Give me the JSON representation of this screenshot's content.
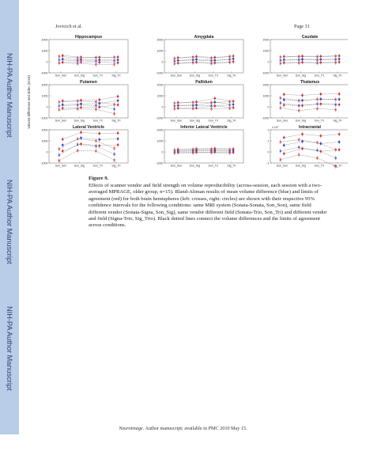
{
  "header": {
    "author": "Jovicich et al.",
    "page": "Page 31"
  },
  "sidebar": {
    "label": "NIH-PA Author Manuscript"
  },
  "figure": {
    "ylabel": "Volume difference and stdev (mm3)",
    "x_categories": [
      "Son_Son",
      "Son_Sig",
      "Son_Tri",
      "Sig_Tri"
    ],
    "panels": [
      {
        "title": "Hippocampus",
        "yticks": [
          "2000",
          "1000",
          "0",
          "-1000"
        ],
        "left": {
          "mean": [
            160,
            90,
            70,
            80
          ],
          "lower": [
            -120,
            -160,
            -240,
            -240
          ],
          "upper": [
            480,
            340,
            380,
            400
          ]
        },
        "right": {
          "mean": [
            240,
            190,
            170,
            160
          ],
          "lower": [
            -40,
            -30,
            -60,
            -90
          ],
          "upper": [
            560,
            410,
            400,
            420
          ]
        }
      },
      {
        "title": "Amygdala",
        "yticks": [
          "2000",
          "1000",
          "0",
          "-1000"
        ],
        "left": {
          "mean": [
            60,
            160,
            80,
            200
          ],
          "lower": [
            -180,
            -90,
            -160,
            -60
          ],
          "upper": [
            300,
            420,
            330,
            460
          ]
        },
        "right": {
          "mean": [
            120,
            210,
            130,
            260
          ],
          "lower": [
            -120,
            -40,
            -100,
            0
          ],
          "upper": [
            360,
            470,
            390,
            510
          ]
        }
      },
      {
        "title": "Caudate",
        "yticks": [
          "2000",
          "1000",
          "0",
          "-1000"
        ],
        "left": {
          "mean": [
            120,
            170,
            160,
            200
          ],
          "lower": [
            -150,
            -110,
            -120,
            -80
          ],
          "upper": [
            420,
            460,
            450,
            500
          ]
        },
        "right": {
          "mean": [
            180,
            220,
            210,
            240
          ],
          "lower": [
            -80,
            -50,
            -70,
            -30
          ],
          "upper": [
            470,
            500,
            490,
            530
          ]
        }
      },
      {
        "title": "Putamen",
        "yticks": [
          "2000",
          "1000",
          "0",
          "-1000"
        ],
        "left": {
          "mean": [
            90,
            160,
            120,
            -200
          ],
          "lower": [
            -260,
            -190,
            -220,
            -620
          ],
          "upper": [
            430,
            520,
            450,
            220
          ]
        },
        "right": {
          "mean": [
            200,
            260,
            300,
            560
          ],
          "lower": [
            -120,
            -60,
            -20,
            180
          ],
          "upper": [
            540,
            590,
            640,
            940
          ]
        }
      },
      {
        "title": "Pallidum",
        "yticks": [
          "2000",
          "1000",
          "0",
          "-1000"
        ],
        "left": {
          "mean": [
            70,
            120,
            100,
            160
          ],
          "lower": [
            -180,
            -160,
            -180,
            -140
          ],
          "upper": [
            330,
            400,
            380,
            460
          ]
        },
        "right": {
          "mean": [
            130,
            170,
            420,
            210
          ],
          "lower": [
            -120,
            -100,
            80,
            -80
          ],
          "upper": [
            380,
            450,
            760,
            500
          ]
        }
      },
      {
        "title": "Thalamus",
        "yticks": [
          "2000",
          "1000",
          "0",
          "-1000"
        ],
        "left": {
          "mean": [
            350,
            110,
            260,
            200
          ],
          "lower": [
            -100,
            -340,
            -160,
            -260
          ],
          "upper": [
            800,
            560,
            680,
            660
          ]
        },
        "right": {
          "mean": [
            640,
            580,
            700,
            680
          ],
          "lower": [
            160,
            120,
            260,
            200
          ],
          "upper": [
            1120,
            1040,
            1150,
            1160
          ]
        }
      },
      {
        "title": "Lateral Ventricle",
        "yticks": [
          "2000",
          "1000",
          "0",
          "-1000"
        ],
        "left": {
          "mean": [
            -280,
            680,
            520,
            -200
          ],
          "lower": [
            -780,
            120,
            80,
            -740
          ],
          "upper": [
            260,
            1180,
            1000,
            320
          ]
        },
        "right": {
          "mean": [
            620,
            1260,
            1120,
            1180
          ],
          "lower": [
            80,
            720,
            560,
            640
          ],
          "upper": [
            1140,
            1760,
            1660,
            1700
          ]
        }
      },
      {
        "title": "Inferior Lateral Ventricle",
        "yticks": [
          "2000",
          "1000",
          "0",
          "-1000"
        ],
        "left": {
          "mean": [
            40,
            80,
            100,
            60
          ],
          "lower": [
            -100,
            -80,
            -60,
            -100
          ],
          "upper": [
            180,
            230,
            260,
            220
          ]
        },
        "right": {
          "mean": [
            90,
            130,
            150,
            110
          ],
          "lower": [
            -50,
            -30,
            -10,
            -50
          ],
          "upper": [
            230,
            280,
            310,
            270
          ]
        }
      },
      {
        "title": "Intracranial",
        "exponent": "x 10⁴",
        "yticks": [
          "2",
          "1",
          "0",
          "-1"
        ],
        "left": {
          "mean": [
            0.08,
            0.42,
            0.15,
            -0.55
          ],
          "lower": [
            -0.7,
            -0.25,
            -0.55,
            -1.3
          ],
          "upper": [
            0.9,
            1.1,
            0.85,
            0.2
          ]
        },
        "right": {
          "mean": [
            0.6,
            0.95,
            0.75,
            0.9
          ],
          "lower": [
            -0.15,
            0.3,
            0.05,
            0.2
          ],
          "upper": [
            1.3,
            1.6,
            1.45,
            1.6
          ]
        }
      }
    ]
  },
  "caption": {
    "title": "Figure 9.",
    "text": "Effects of scanner vendor and field strength on volume reproducibility (across-session, each session with a two-averaged MPRAGE, older group, n=15). Bland-Altman results of mean volume difference (blue) and limits of agreement (red) for both brain hemispheres (left: crosses, right: circles) are shown with their respective 95% confidence intervals for the following conditions: same MRI system (Sonata-Sonata, Son_Son), same field different vendor (Sonata-Signa, Son_Sig), same vendor different field (Sonata-Trio, Son_Tri) and different vendor and field (Signa-Trio, Sig_Trio). Black dotted lines connect the volume differences and the limits of agreement across conditions."
  },
  "footer": {
    "journal": "Neuroimage",
    "text": ". Author manuscript; available in PMC 2010 May 15."
  },
  "colors": {
    "mean": "#2b3fcf",
    "limits": "#d03030",
    "sidebar": "#b9cce8",
    "sidebar_text": "#2a3f6b"
  }
}
